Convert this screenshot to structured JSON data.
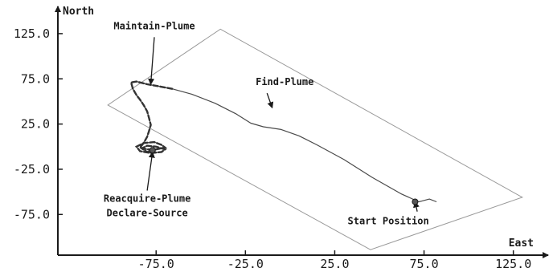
{
  "chart_data": {
    "type": "line",
    "title": "",
    "xlabel": "East",
    "ylabel": "North",
    "xlim": [
      -130,
      140
    ],
    "ylim": [
      -120,
      148
    ],
    "x_ticks": [
      -75,
      -25,
      25,
      75,
      125
    ],
    "x_tick_labels": [
      "-75.0",
      "-25.0",
      "25.0",
      "75.0",
      "125.0"
    ],
    "y_ticks": [
      125,
      75,
      25,
      -25,
      -75
    ],
    "y_tick_labels": [
      "125.0",
      "75.0",
      "25.0",
      "-25.0",
      "-75.0"
    ],
    "grid": false,
    "search_area": [
      [
        -102,
        46
      ],
      [
        -39,
        130
      ],
      [
        130,
        -56
      ],
      [
        45,
        -114
      ]
    ],
    "series": [
      {
        "name": "",
        "x": [
          82,
          78,
          74,
          72,
          62,
          46,
          30,
          15,
          5,
          -5,
          -15,
          -22,
          -30,
          -42,
          -55,
          -66,
          -74,
          -80,
          -86,
          -89,
          -88,
          -86,
          -84,
          -82,
          -80,
          -79,
          -78,
          -79,
          -80,
          -82,
          -84,
          -80,
          -75,
          -70,
          -72,
          -76,
          -82,
          -86,
          -84,
          -78,
          -72,
          -70,
          -75,
          -80,
          -83,
          -80,
          -77
        ],
        "y": [
          -61,
          -58,
          -60,
          -61,
          -52,
          -34,
          -14,
          2,
          12,
          19,
          22,
          26,
          36,
          48,
          58,
          64,
          67,
          69,
          72,
          71,
          64,
          57,
          52,
          46,
          39,
          32,
          24,
          17,
          11,
          4,
          -1,
          -3,
          -3,
          -1,
          2,
          5,
          4,
          0,
          -5,
          -7,
          -6,
          -3,
          0,
          1,
          -2,
          -6,
          -4
        ]
      }
    ],
    "points": [
      {
        "name": "start",
        "x": 70,
        "y": -61
      },
      {
        "name": "source",
        "x": -77,
        "y": -4
      }
    ],
    "annotations": [
      {
        "text": "Maintain-Plume",
        "x": -76,
        "y": 130,
        "arrow_x": -78,
        "arrow_y": 69
      },
      {
        "text": "Find-Plume",
        "x": -3,
        "y": 68,
        "arrow_x": -10,
        "arrow_y": 43
      },
      {
        "text": "Reacquire-Plume",
        "x": -80,
        "y": -61,
        "arrow_x": -77,
        "arrow_y": -6
      },
      {
        "text": "Declare-Source",
        "x": -80,
        "y": -77,
        "arrow_x": null,
        "arrow_y": null
      },
      {
        "text": "Start Position",
        "x": 55,
        "y": -86,
        "arrow_x": 70,
        "arrow_y": -61
      }
    ]
  }
}
